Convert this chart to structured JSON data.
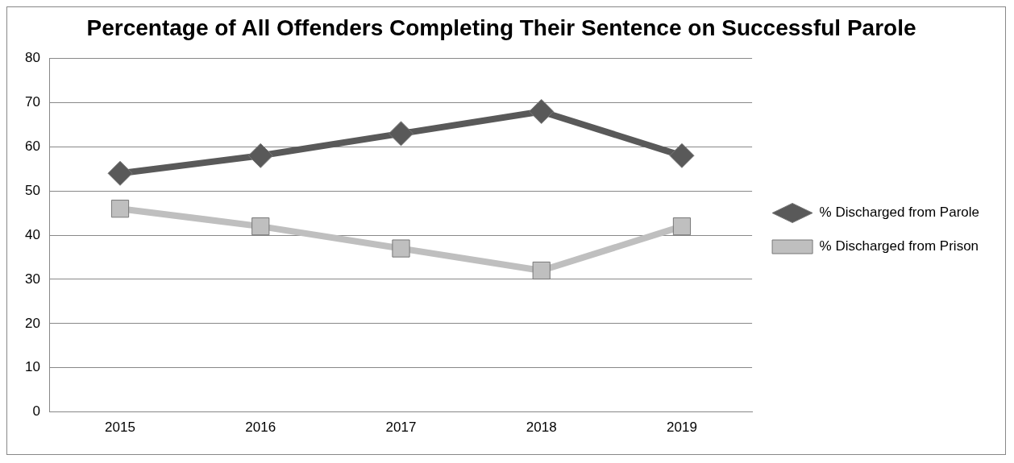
{
  "chart_data": {
    "type": "line",
    "title": "Percentage of All Offenders Completing Their Sentence on Successful Parole",
    "categories": [
      "2015",
      "2016",
      "2017",
      "2018",
      "2019"
    ],
    "series": [
      {
        "name": "% Discharged from Parole",
        "color": "#595959",
        "marker": "diamond",
        "values": [
          54,
          58,
          63,
          68,
          58
        ]
      },
      {
        "name": "% Discharged from Prison",
        "color": "#bfbfbf",
        "marker": "square",
        "values": [
          46,
          42,
          37,
          32,
          42
        ]
      }
    ],
    "ylim": [
      0,
      80
    ],
    "yticks": [
      0,
      10,
      20,
      30,
      40,
      50,
      60,
      70,
      80
    ],
    "grid": "y",
    "legend": "right"
  }
}
